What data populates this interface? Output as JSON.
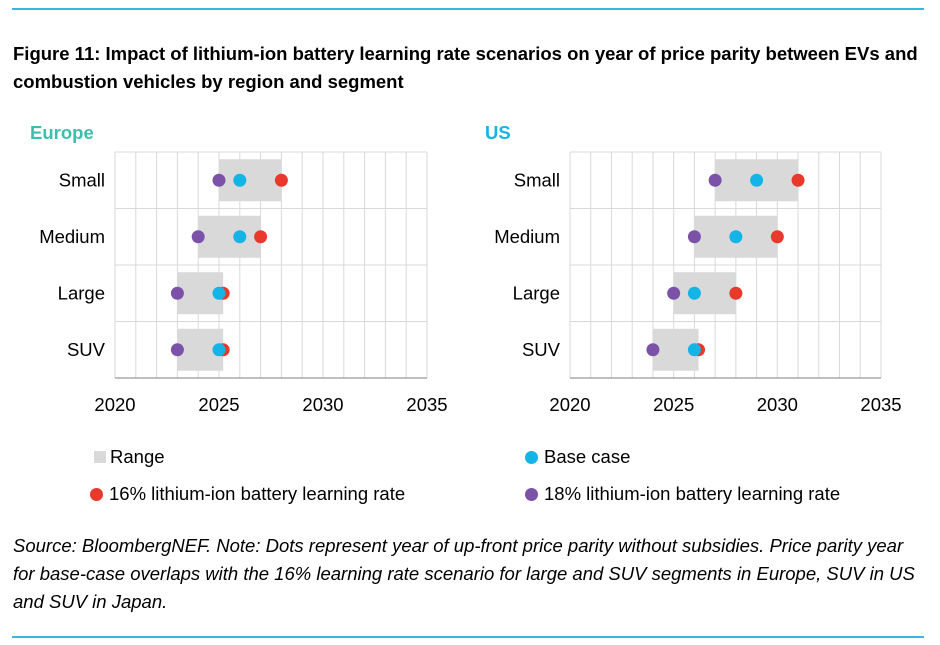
{
  "figure": {
    "title": "Figure 11: Impact of lithium-ion battery learning rate scenarios on year of price parity between EVs and combustion vehicles by region and segment",
    "source": "Source: BloombergNEF. Note: Dots represent year of up-front price parity without subsidies. Price parity year for base-case overlaps with the 16% learning rate scenario for large and SUV segments in Europe, SUV in US and SUV in Japan."
  },
  "legend": {
    "range": "Range",
    "base": "Base case",
    "lr16": "16% lithium-ion battery learning rate",
    "lr18": "18% lithium-ion battery learning rate"
  },
  "colors": {
    "range": "#d9d9d9",
    "base": "#14b4e6",
    "lr16": "#e8392d",
    "lr18": "#7b52a8",
    "europe_title": "#3bbfad",
    "us_title": "#14b4e6",
    "grid": "#d9d9d9"
  },
  "chart_data": [
    {
      "type": "range-dot",
      "title": "Europe",
      "categories": [
        "Small",
        "Medium",
        "Large",
        "SUV"
      ],
      "xlim": [
        2020,
        2035
      ],
      "xticks": [
        2020,
        2025,
        2030,
        2035
      ],
      "grid": true,
      "range": [
        [
          2025,
          2028
        ],
        [
          2024,
          2027
        ],
        [
          2023,
          2025.2
        ],
        [
          2023,
          2025.2
        ]
      ],
      "series": [
        {
          "name": "18% lithium-ion battery learning rate",
          "values": [
            2025,
            2024,
            2023,
            2023
          ]
        },
        {
          "name": "Base case",
          "values": [
            2026,
            2026,
            2025,
            2025
          ]
        },
        {
          "name": "16% lithium-ion battery learning rate",
          "values": [
            2028,
            2027,
            2025.2,
            2025.2
          ]
        }
      ]
    },
    {
      "type": "range-dot",
      "title": "US",
      "categories": [
        "Small",
        "Medium",
        "Large",
        "SUV"
      ],
      "xlim": [
        2020,
        2035
      ],
      "xticks": [
        2020,
        2025,
        2030,
        2035
      ],
      "grid": true,
      "range": [
        [
          2027,
          2031
        ],
        [
          2026,
          2030
        ],
        [
          2025,
          2028
        ],
        [
          2024,
          2026.2
        ]
      ],
      "series": [
        {
          "name": "18% lithium-ion battery learning rate",
          "values": [
            2027,
            2026,
            2025,
            2024
          ]
        },
        {
          "name": "Base case",
          "values": [
            2029,
            2028,
            2026,
            2026
          ]
        },
        {
          "name": "16% lithium-ion battery learning rate",
          "values": [
            2031,
            2030,
            2028,
            2026.2
          ]
        }
      ]
    }
  ]
}
